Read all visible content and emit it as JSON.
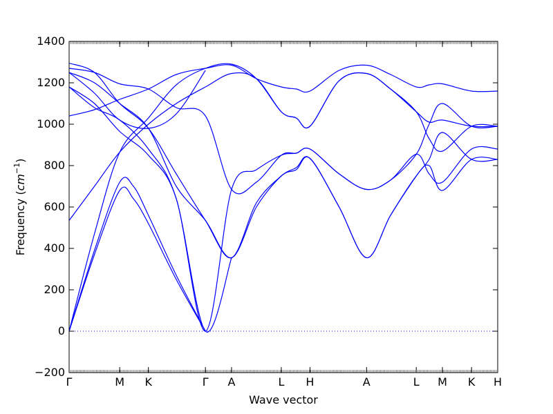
{
  "chart_data": {
    "type": "line",
    "title": "",
    "xlabel": "Wave vector",
    "ylabel_text": "Frequency (",
    "ylabel_unit": "cm",
    "ylabel_exp": "−1",
    "ylabel_close": ")",
    "ylim": [
      -200,
      1400
    ],
    "yticks": [
      -200,
      0,
      200,
      400,
      600,
      800,
      1000,
      1200,
      1400
    ],
    "high_symmetry_points": [
      {
        "label": "Γ",
        "x": 0.0
      },
      {
        "label": "M",
        "x": 0.118
      },
      {
        "label": "K",
        "x": 0.185
      },
      {
        "label": "Γ",
        "x": 0.318
      },
      {
        "label": "A",
        "x": 0.379
      },
      {
        "label": "L",
        "x": 0.495
      },
      {
        "label": "H",
        "x": 0.562
      },
      {
        "label": "A",
        "x": 0.694
      },
      {
        "label": "L",
        "x": 0.81
      },
      {
        "label": "M",
        "x": 0.871
      },
      {
        "label": "K",
        "x": 0.939
      },
      {
        "label": "H",
        "x": 1.0
      }
    ],
    "zero_line": {
      "y": 0,
      "style": "dotted"
    },
    "line_color": "#0000ff",
    "series": [
      {
        "points": [
          [
            0.0,
            0
          ],
          [
            0.059,
            370
          ],
          [
            0.118,
            680
          ],
          [
            0.15,
            640
          ],
          [
            0.185,
            520
          ],
          [
            0.25,
            250
          ],
          [
            0.318,
            0
          ]
        ]
      },
      {
        "points": [
          [
            0.0,
            0
          ],
          [
            0.059,
            390
          ],
          [
            0.118,
            720
          ],
          [
            0.15,
            700
          ],
          [
            0.185,
            560
          ],
          [
            0.25,
            270
          ],
          [
            0.318,
            0
          ]
        ]
      },
      {
        "points": [
          [
            0.0,
            0
          ],
          [
            0.059,
            470
          ],
          [
            0.118,
            865
          ],
          [
            0.185,
            1030
          ],
          [
            0.25,
            1190
          ],
          [
            0.318,
            1270
          ],
          [
            0.379,
            1290
          ],
          [
            0.437,
            1220
          ],
          [
            0.495,
            1060
          ],
          [
            0.53,
            1030
          ],
          [
            0.562,
            990
          ],
          [
            0.63,
            1210
          ],
          [
            0.694,
            1245
          ],
          [
            0.75,
            1170
          ],
          [
            0.81,
            1060
          ],
          [
            0.84,
            930
          ],
          [
            0.871,
            870
          ],
          [
            0.939,
            990
          ],
          [
            1.0,
            990
          ]
        ]
      },
      {
        "points": [
          [
            0.0,
            535
          ],
          [
            0.059,
            700
          ],
          [
            0.118,
            865
          ],
          [
            0.185,
            1000
          ],
          [
            0.25,
            1100
          ],
          [
            0.318,
            1180
          ],
          [
            0.379,
            1245
          ],
          [
            0.437,
            1220
          ],
          [
            0.495,
            1060
          ],
          [
            0.53,
            1030
          ],
          [
            0.562,
            990
          ],
          [
            0.63,
            1210
          ],
          [
            0.694,
            1245
          ],
          [
            0.75,
            1170
          ],
          [
            0.81,
            1060
          ],
          [
            0.84,
            1010
          ],
          [
            0.871,
            1020
          ],
          [
            0.939,
            990
          ],
          [
            1.0,
            990
          ]
        ]
      },
      {
        "points": [
          [
            0.0,
            1040
          ],
          [
            0.059,
            1070
          ],
          [
            0.118,
            1120
          ],
          [
            0.185,
            1170
          ],
          [
            0.25,
            1240
          ],
          [
            0.318,
            1270
          ],
          [
            0.379,
            1285
          ],
          [
            0.437,
            1220
          ],
          [
            0.495,
            1180
          ],
          [
            0.53,
            1170
          ],
          [
            0.562,
            1160
          ],
          [
            0.63,
            1260
          ],
          [
            0.694,
            1285
          ],
          [
            0.75,
            1240
          ],
          [
            0.81,
            1180
          ],
          [
            0.84,
            1190
          ],
          [
            0.871,
            1195
          ],
          [
            0.939,
            1160
          ],
          [
            1.0,
            1160
          ]
        ]
      },
      {
        "points": [
          [
            0.0,
            1270
          ],
          [
            0.059,
            1250
          ],
          [
            0.118,
            1195
          ],
          [
            0.185,
            1170
          ],
          [
            0.25,
            1080
          ],
          [
            0.318,
            1040
          ],
          [
            0.379,
            685
          ],
          [
            0.437,
            720
          ],
          [
            0.495,
            850
          ],
          [
            0.53,
            860
          ],
          [
            0.562,
            880
          ],
          [
            0.63,
            760
          ],
          [
            0.694,
            685
          ],
          [
            0.75,
            730
          ],
          [
            0.81,
            855
          ],
          [
            0.84,
            1000
          ],
          [
            0.871,
            1100
          ],
          [
            0.939,
            990
          ],
          [
            1.0,
            990
          ]
        ]
      },
      {
        "points": [
          [
            0.0,
            1250
          ],
          [
            0.059,
            1200
          ],
          [
            0.118,
            1100
          ],
          [
            0.185,
            980
          ],
          [
            0.25,
            700
          ],
          [
            0.318,
            535
          ],
          [
            0.379,
            355
          ],
          [
            0.437,
            600
          ],
          [
            0.495,
            750
          ],
          [
            0.53,
            780
          ],
          [
            0.562,
            835
          ],
          [
            0.63,
            600
          ],
          [
            0.694,
            355
          ],
          [
            0.75,
            560
          ],
          [
            0.81,
            750
          ],
          [
            0.84,
            800
          ],
          [
            0.871,
            680
          ],
          [
            0.939,
            830
          ],
          [
            1.0,
            830
          ]
        ]
      },
      {
        "points": [
          [
            0.0,
            1295
          ],
          [
            0.059,
            1250
          ],
          [
            0.118,
            1100
          ],
          [
            0.185,
            980
          ],
          [
            0.25,
            760
          ],
          [
            0.318,
            535
          ],
          [
            0.379,
            355
          ],
          [
            0.437,
            620
          ],
          [
            0.495,
            750
          ],
          [
            0.53,
            790
          ],
          [
            0.562,
            835
          ],
          [
            0.63,
            600
          ],
          [
            0.694,
            355
          ],
          [
            0.75,
            560
          ],
          [
            0.81,
            750
          ],
          [
            0.84,
            830
          ],
          [
            0.871,
            960
          ],
          [
            0.939,
            830
          ],
          [
            1.0,
            830
          ]
        ]
      },
      {
        "points": [
          [
            0.0,
            1180
          ],
          [
            0.059,
            1100
          ],
          [
            0.118,
            965
          ],
          [
            0.185,
            850
          ],
          [
            0.25,
            640
          ],
          [
            0.318,
            0
          ],
          [
            0.379,
            685
          ],
          [
            0.437,
            780
          ],
          [
            0.495,
            850
          ],
          [
            0.53,
            860
          ],
          [
            0.562,
            880
          ],
          [
            0.63,
            760
          ],
          [
            0.694,
            685
          ],
          [
            0.75,
            730
          ],
          [
            0.81,
            855
          ],
          [
            0.84,
            760
          ],
          [
            0.871,
            720
          ],
          [
            0.939,
            880
          ],
          [
            1.0,
            880
          ]
        ]
      },
      {
        "points": [
          [
            0.0,
            1180
          ],
          [
            0.059,
            1080
          ],
          [
            0.118,
            1020
          ],
          [
            0.185,
            880
          ],
          [
            0.25,
            640
          ],
          [
            0.318,
            0
          ],
          [
            0.379,
            355
          ]
        ]
      },
      {
        "points": [
          [
            0.0,
            1250
          ],
          [
            0.059,
            1150
          ],
          [
            0.118,
            1020
          ],
          [
            0.185,
            980
          ],
          [
            0.25,
            1050
          ],
          [
            0.318,
            1260
          ]
        ]
      }
    ]
  }
}
